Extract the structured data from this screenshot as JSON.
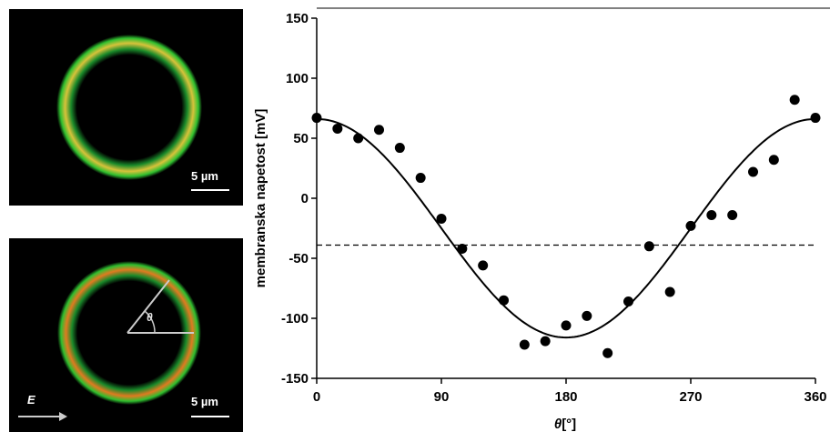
{
  "micrographs": {
    "top": {
      "scale_bar": "5 µm"
    },
    "bottom": {
      "scale_bar": "5 µm",
      "angle_label": "θ",
      "field_label": "E"
    }
  },
  "colors": {
    "ring_outer": "#1a8a2a",
    "ring_inner": "#2fbf2f",
    "ring_highlight": "#d8c23a",
    "ring_hot": "#e07a20",
    "markers": "#000000",
    "fit_line": "#000000",
    "threshold_line": "#000000"
  },
  "chart_data": {
    "type": "scatter",
    "xlabel_symbol": "θ",
    "xlabel_unit": "[°]",
    "ylabel": "membranska napetost [mV]",
    "xlim": [
      0,
      360
    ],
    "ylim": [
      -150,
      150
    ],
    "xticks": [
      0,
      90,
      180,
      270,
      360
    ],
    "yticks": [
      -150,
      -100,
      -50,
      0,
      50,
      100,
      150
    ],
    "grid": false,
    "series": [
      {
        "marker": "filled-circle",
        "x": [
          0,
          15,
          30,
          45,
          60,
          75,
          90,
          105,
          120,
          135,
          150,
          165,
          180,
          195,
          210,
          225,
          240,
          255,
          270,
          285,
          300,
          315,
          330,
          345,
          360
        ],
        "y": [
          67,
          58,
          50,
          57,
          42,
          17,
          -17,
          -42,
          -56,
          -85,
          -122,
          -119,
          -106,
          -98,
          -129,
          -86,
          -40,
          -78,
          -23,
          -14,
          -14,
          22,
          32,
          82,
          67
        ]
      }
    ],
    "fit_curve": {
      "form": "cosine",
      "offset": -25,
      "amplitude": 91
    },
    "threshold": {
      "y": -39,
      "style": "dashed"
    }
  }
}
